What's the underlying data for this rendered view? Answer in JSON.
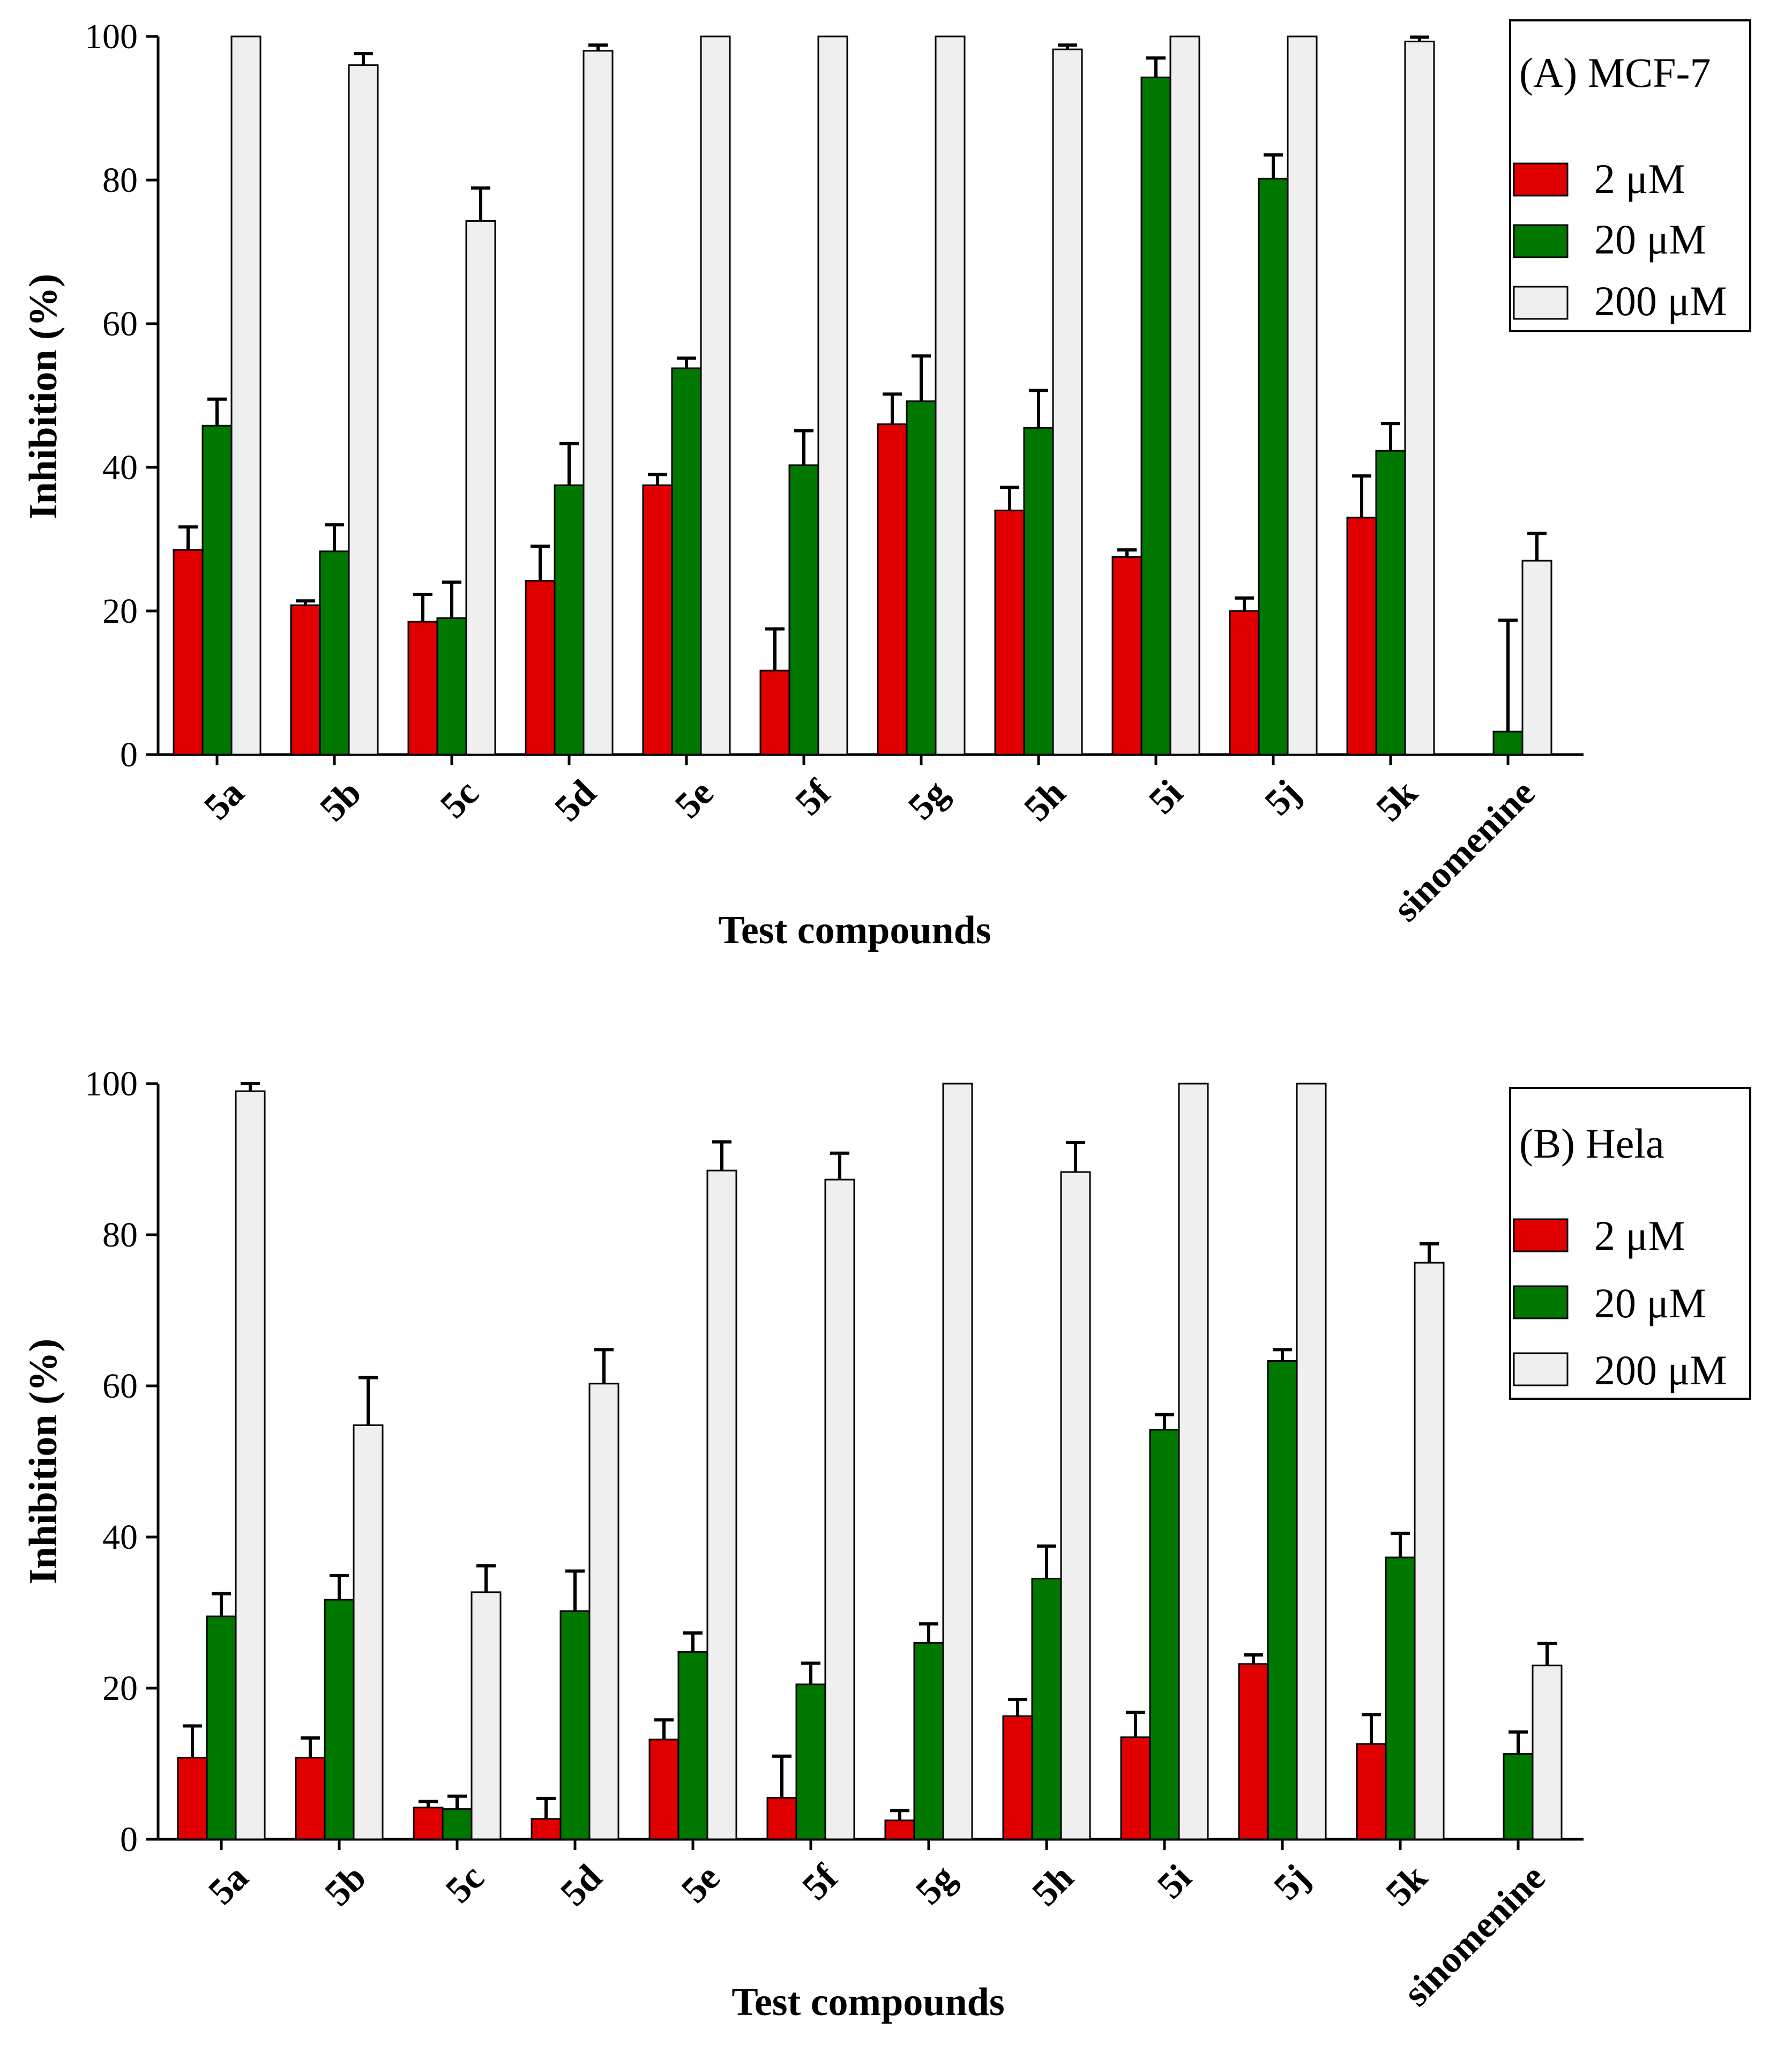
{
  "chart_data": [
    {
      "type": "bar",
      "legend_title": "(A) MCF-7",
      "xlabel": "Test compounds",
      "ylabel": "Inhibition (%)",
      "ylim": [
        0,
        100
      ],
      "yticks": [
        "0",
        "20",
        "40",
        "60",
        "80",
        "100"
      ],
      "categories": [
        "5a",
        "5b",
        "5c",
        "5d",
        "5e",
        "5f",
        "5g",
        "5h",
        "5i",
        "5j",
        "5k",
        "sinomenine"
      ],
      "series": [
        {
          "name": "2 μM",
          "color": "#e00000",
          "values": [
            28.5,
            20.8,
            18.5,
            24.2,
            37.5,
            11.7,
            46.0,
            34.0,
            27.5,
            20.0,
            33.0,
            0
          ],
          "errors": [
            3.2,
            0.6,
            3.8,
            4.8,
            1.5,
            5.8,
            4.2,
            3.2,
            1.0,
            1.8,
            5.8,
            0
          ]
        },
        {
          "name": "20 μM",
          "color": "#007800",
          "values": [
            45.8,
            28.3,
            19.0,
            37.5,
            53.8,
            40.3,
            49.2,
            45.5,
            94.3,
            80.2,
            42.3,
            3.2
          ],
          "errors": [
            3.7,
            3.7,
            5.0,
            5.8,
            1.4,
            4.8,
            6.3,
            5.2,
            2.7,
            3.3,
            3.8,
            15.5
          ]
        },
        {
          "name": "200 μM",
          "color": "#efefef",
          "values": [
            100,
            96.0,
            74.3,
            98.0,
            100,
            100,
            100,
            98.2,
            100,
            100,
            99.3,
            27.0
          ],
          "errors": [
            0,
            1.6,
            4.6,
            0.8,
            0,
            0,
            0,
            0.6,
            0,
            0,
            0.6,
            3.8
          ]
        }
      ]
    },
    {
      "type": "bar",
      "legend_title": "(B) Hela",
      "xlabel": "Test compounds",
      "ylabel": "Inhibition (%)",
      "ylim": [
        0,
        100
      ],
      "yticks": [
        "0",
        "20",
        "40",
        "60",
        "80",
        "100"
      ],
      "categories": [
        "5a",
        "5b",
        "5c",
        "5d",
        "5e",
        "5f",
        "5g",
        "5h",
        "5i",
        "5j",
        "5k",
        "sinomenine"
      ],
      "series": [
        {
          "name": "2  μM",
          "color": "#e00000",
          "values": [
            10.8,
            10.8,
            4.2,
            2.7,
            13.2,
            5.5,
            2.5,
            16.3,
            13.5,
            23.2,
            12.6,
            0
          ],
          "errors": [
            4.2,
            2.6,
            0.8,
            2.7,
            2.6,
            5.5,
            1.3,
            2.2,
            3.3,
            1.2,
            3.9,
            0
          ]
        },
        {
          "name": "20 μM",
          "color": "#007800",
          "values": [
            29.5,
            31.7,
            4.0,
            30.2,
            24.8,
            20.5,
            26.0,
            34.5,
            54.2,
            63.3,
            37.3,
            11.3
          ],
          "errors": [
            3.0,
            3.2,
            1.7,
            5.3,
            2.5,
            2.8,
            2.5,
            4.3,
            2.0,
            1.5,
            3.2,
            2.9
          ]
        },
        {
          "name": "200 μM",
          "color": "#efefef",
          "values": [
            99.0,
            54.8,
            32.7,
            60.3,
            88.5,
            87.3,
            100,
            88.3,
            100,
            100,
            76.3,
            23.0
          ],
          "errors": [
            1.0,
            6.3,
            3.5,
            4.5,
            3.8,
            3.5,
            0,
            3.9,
            0,
            0,
            2.5,
            2.9
          ]
        }
      ]
    }
  ]
}
